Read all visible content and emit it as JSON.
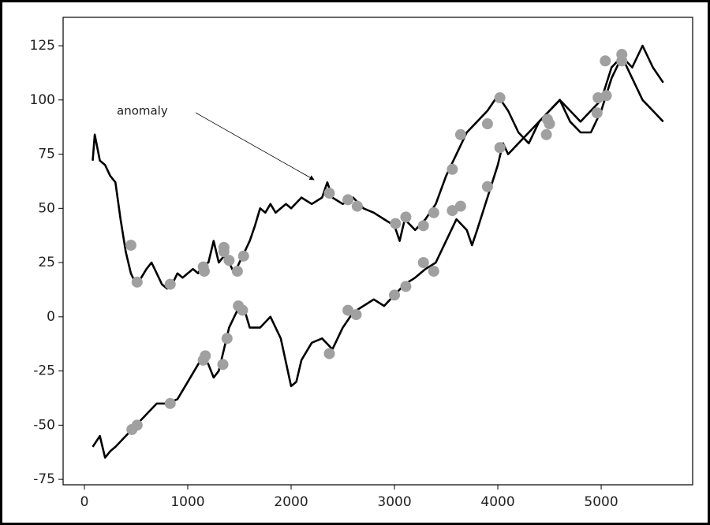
{
  "chart_data": {
    "type": "line",
    "xlim": [
      -206,
      5885
    ],
    "ylim": [
      -77.5,
      138.1
    ],
    "xticks": [
      0,
      1000,
      2000,
      3000,
      4000,
      5000
    ],
    "yticks": [
      -75,
      -50,
      -25,
      0,
      25,
      50,
      75,
      100,
      125
    ],
    "grid": false,
    "series": [
      {
        "color": "#000000",
        "x": [
          80,
          100,
          150,
          200,
          250,
          300,
          350,
          400,
          450,
          500,
          550,
          600,
          650,
          700,
          750,
          800,
          850,
          900,
          950,
          1000,
          1050,
          1100,
          1150,
          1200,
          1250,
          1300,
          1350,
          1400,
          1450,
          1500,
          1550,
          1600,
          1650,
          1700,
          1750,
          1800,
          1850,
          1900,
          1950,
          2000,
          2100,
          2200,
          2300,
          2350,
          2400,
          2500,
          2600,
          2700,
          2800,
          2900,
          3000,
          3050,
          3100,
          3200,
          3300,
          3400,
          3500,
          3600,
          3700,
          3800,
          3900,
          4000,
          4100,
          4200,
          4300,
          4400,
          4500,
          4600,
          4700,
          4800,
          4900,
          5000,
          5100,
          5200,
          5300,
          5400,
          5500,
          5600
        ],
        "values": [
          72,
          84,
          72,
          70,
          65,
          62,
          45,
          30,
          20,
          15,
          18,
          22,
          25,
          20,
          15,
          13,
          15,
          20,
          18,
          20,
          22,
          20,
          24,
          25,
          35,
          25,
          28,
          25,
          20,
          25,
          30,
          35,
          42,
          50,
          48,
          52,
          48,
          50,
          52,
          50,
          55,
          52,
          55,
          62,
          55,
          52,
          55,
          50,
          48,
          45,
          42,
          35,
          45,
          40,
          45,
          52,
          65,
          75,
          85,
          90,
          95,
          102,
          95,
          85,
          80,
          90,
          95,
          100,
          90,
          85,
          85,
          95,
          110,
          120,
          115,
          125,
          115,
          108
        ]
      },
      {
        "color": "#000000",
        "x": [
          80,
          150,
          200,
          250,
          300,
          400,
          500,
          600,
          700,
          800,
          900,
          1000,
          1100,
          1150,
          1200,
          1250,
          1300,
          1350,
          1400,
          1450,
          1500,
          1550,
          1600,
          1700,
          1800,
          1900,
          2000,
          2050,
          2100,
          2200,
          2300,
          2400,
          2500,
          2600,
          2700,
          2800,
          2900,
          3000,
          3100,
          3200,
          3300,
          3400,
          3500,
          3600,
          3700,
          3750,
          3800,
          3900,
          4000,
          4050,
          4100,
          4200,
          4300,
          4400,
          4500,
          4600,
          4700,
          4800,
          4900,
          5000,
          5100,
          5200,
          5300,
          5400,
          5500,
          5600
        ],
        "values": [
          -60,
          -55,
          -65,
          -62,
          -60,
          -55,
          -50,
          -45,
          -40,
          -40,
          -38,
          -30,
          -22,
          -18,
          -22,
          -28,
          -25,
          -15,
          -5,
          0,
          5,
          3,
          -5,
          -5,
          0,
          -10,
          -32,
          -30,
          -20,
          -12,
          -10,
          -15,
          -5,
          2,
          5,
          8,
          5,
          10,
          15,
          18,
          22,
          25,
          35,
          45,
          40,
          33,
          40,
          55,
          70,
          80,
          75,
          80,
          85,
          90,
          95,
          100,
          95,
          90,
          95,
          100,
          115,
          120,
          110,
          100,
          95,
          90
        ]
      }
    ],
    "scatter": {
      "color": "#a0a0a0",
      "x": [
        450,
        510,
        830,
        1150,
        1160,
        1350,
        1350,
        1400,
        1480,
        1540,
        2370,
        2550,
        2640,
        3010,
        3110,
        3280,
        3380,
        3560,
        3640,
        3900,
        4020,
        4470,
        4480,
        4500,
        4960,
        4970,
        5040,
        5050,
        5200,
        5200,
        460,
        510,
        830,
        1150,
        1170,
        1340,
        1380,
        1490,
        1530,
        2370,
        2550,
        2630,
        3000,
        3110,
        3280,
        3380,
        3560,
        3640,
        3900,
        4020
      ],
      "values": [
        33,
        16,
        15,
        23,
        21,
        32,
        30,
        26,
        21,
        28,
        57,
        54,
        51,
        43,
        46,
        42,
        48,
        68,
        84,
        89,
        101,
        84,
        91,
        89,
        94,
        101,
        118,
        102,
        121,
        118,
        -52,
        -50,
        -40,
        -20,
        -18,
        -22,
        -10,
        5,
        3,
        -17,
        3,
        1,
        10,
        14,
        25,
        21,
        49,
        51,
        60,
        78
      ]
    },
    "annotation": "anomaly"
  }
}
